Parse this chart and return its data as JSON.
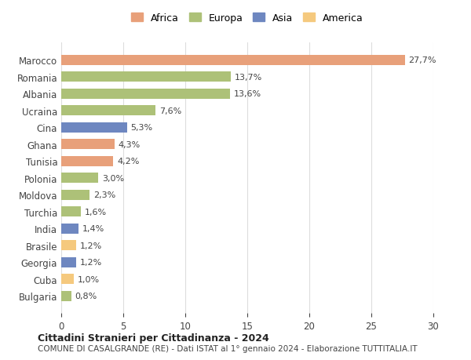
{
  "countries": [
    "Bulgaria",
    "Cuba",
    "Georgia",
    "Brasile",
    "India",
    "Turchia",
    "Moldova",
    "Polonia",
    "Tunisia",
    "Ghana",
    "Cina",
    "Ucraina",
    "Albania",
    "Romania",
    "Marocco"
  ],
  "values": [
    0.8,
    1.0,
    1.2,
    1.2,
    1.4,
    1.6,
    2.3,
    3.0,
    4.2,
    4.3,
    5.3,
    7.6,
    13.6,
    13.7,
    27.7
  ],
  "labels": [
    "0,8%",
    "1,0%",
    "1,2%",
    "1,2%",
    "1,4%",
    "1,6%",
    "2,3%",
    "3,0%",
    "4,2%",
    "4,3%",
    "5,3%",
    "7,6%",
    "13,6%",
    "13,7%",
    "27,7%"
  ],
  "colors": [
    "#adc178",
    "#f5c97e",
    "#6e87c0",
    "#f5c97e",
    "#6e87c0",
    "#adc178",
    "#adc178",
    "#adc178",
    "#e8a07a",
    "#e8a07a",
    "#6e87c0",
    "#adc178",
    "#adc178",
    "#adc178",
    "#e8a07a"
  ],
  "legend_names": [
    "Africa",
    "Europa",
    "Asia",
    "America"
  ],
  "legend_colors": [
    "#e8a07a",
    "#adc178",
    "#6e87c0",
    "#f5c97e"
  ],
  "title": "Cittadini Stranieri per Cittadinanza - 2024",
  "subtitle": "COMUNE DI CASALGRANDE (RE) - Dati ISTAT al 1° gennaio 2024 - Elaborazione TUTTITALIA.IT",
  "xlabel_ticks": [
    0,
    5,
    10,
    15,
    20,
    25,
    30
  ],
  "xlim": [
    0,
    30
  ],
  "background_color": "#ffffff",
  "grid_color": "#dddddd",
  "bar_height": 0.6
}
